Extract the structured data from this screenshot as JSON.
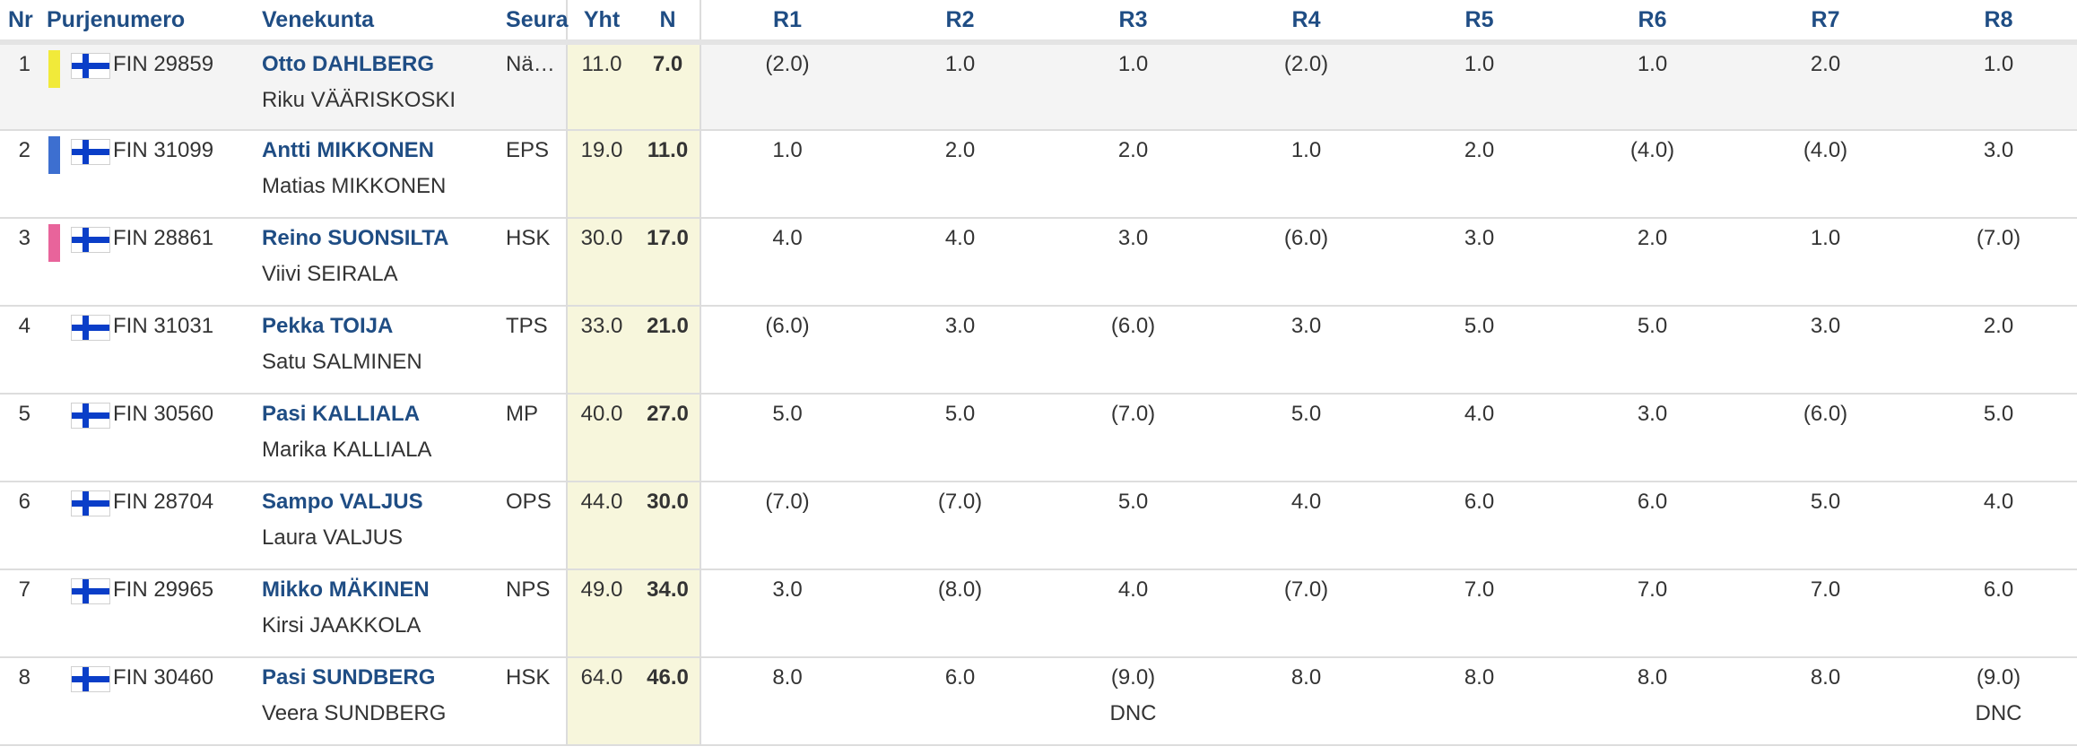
{
  "headers": {
    "nr": "Nr",
    "sail": "Purjenumero",
    "boat": "Venekunta",
    "club": "Seura",
    "total": "Yht",
    "net": "N",
    "races": [
      "R1",
      "R2",
      "R3",
      "R4",
      "R5",
      "R6",
      "R7",
      "R8"
    ]
  },
  "colors": {
    "header_text": "#1f4d84",
    "skipper_text": "#1f4d84",
    "score_bg": "#f7f6dc",
    "first_row_bg": "#f4f4f4",
    "flag_blue": "#0a3ec8"
  },
  "rows": [
    {
      "nr": "1",
      "color": "#f1ea3a",
      "flag": "finland-flag-icon",
      "sail": "FIN 29859",
      "skipper": "Otto DAHLBERG",
      "crew": "Riku VÄÄRISKOSKI",
      "club": "Nä…",
      "total": "11.0",
      "net": "7.0",
      "races": [
        {
          "score": "(2.0)",
          "code": ""
        },
        {
          "score": "1.0",
          "code": ""
        },
        {
          "score": "1.0",
          "code": ""
        },
        {
          "score": "(2.0)",
          "code": ""
        },
        {
          "score": "1.0",
          "code": ""
        },
        {
          "score": "1.0",
          "code": ""
        },
        {
          "score": "2.0",
          "code": ""
        },
        {
          "score": "1.0",
          "code": ""
        }
      ]
    },
    {
      "nr": "2",
      "color": "#3d6fd0",
      "flag": "finland-flag-icon",
      "sail": "FIN 31099",
      "skipper": "Antti MIKKONEN",
      "crew": "Matias MIKKONEN",
      "club": "EPS",
      "total": "19.0",
      "net": "11.0",
      "races": [
        {
          "score": "1.0",
          "code": ""
        },
        {
          "score": "2.0",
          "code": ""
        },
        {
          "score": "2.0",
          "code": ""
        },
        {
          "score": "1.0",
          "code": ""
        },
        {
          "score": "2.0",
          "code": ""
        },
        {
          "score": "(4.0)",
          "code": ""
        },
        {
          "score": "(4.0)",
          "code": ""
        },
        {
          "score": "3.0",
          "code": ""
        }
      ]
    },
    {
      "nr": "3",
      "color": "#e8649b",
      "flag": "finland-flag-icon",
      "sail": "FIN 28861",
      "skipper": "Reino SUONSILTA",
      "crew": "Viivi SEIRALA",
      "club": "HSK",
      "total": "30.0",
      "net": "17.0",
      "races": [
        {
          "score": "4.0",
          "code": ""
        },
        {
          "score": "4.0",
          "code": ""
        },
        {
          "score": "3.0",
          "code": ""
        },
        {
          "score": "(6.0)",
          "code": ""
        },
        {
          "score": "3.0",
          "code": ""
        },
        {
          "score": "2.0",
          "code": ""
        },
        {
          "score": "1.0",
          "code": ""
        },
        {
          "score": "(7.0)",
          "code": ""
        }
      ]
    },
    {
      "nr": "4",
      "color": "",
      "flag": "finland-flag-icon",
      "sail": "FIN 31031",
      "skipper": "Pekka TOIJA",
      "crew": "Satu SALMINEN",
      "club": "TPS",
      "total": "33.0",
      "net": "21.0",
      "races": [
        {
          "score": "(6.0)",
          "code": ""
        },
        {
          "score": "3.0",
          "code": ""
        },
        {
          "score": "(6.0)",
          "code": ""
        },
        {
          "score": "3.0",
          "code": ""
        },
        {
          "score": "5.0",
          "code": ""
        },
        {
          "score": "5.0",
          "code": ""
        },
        {
          "score": "3.0",
          "code": ""
        },
        {
          "score": "2.0",
          "code": ""
        }
      ]
    },
    {
      "nr": "5",
      "color": "",
      "flag": "finland-flag-icon",
      "sail": "FIN 30560",
      "skipper": "Pasi KALLIALA",
      "crew": "Marika KALLIALA",
      "club": "MP",
      "total": "40.0",
      "net": "27.0",
      "races": [
        {
          "score": "5.0",
          "code": ""
        },
        {
          "score": "5.0",
          "code": ""
        },
        {
          "score": "(7.0)",
          "code": ""
        },
        {
          "score": "5.0",
          "code": ""
        },
        {
          "score": "4.0",
          "code": ""
        },
        {
          "score": "3.0",
          "code": ""
        },
        {
          "score": "(6.0)",
          "code": ""
        },
        {
          "score": "5.0",
          "code": ""
        }
      ]
    },
    {
      "nr": "6",
      "color": "",
      "flag": "finland-flag-icon",
      "sail": "FIN 28704",
      "skipper": "Sampo VALJUS",
      "crew": "Laura VALJUS",
      "club": "OPS",
      "total": "44.0",
      "net": "30.0",
      "races": [
        {
          "score": "(7.0)",
          "code": ""
        },
        {
          "score": "(7.0)",
          "code": ""
        },
        {
          "score": "5.0",
          "code": ""
        },
        {
          "score": "4.0",
          "code": ""
        },
        {
          "score": "6.0",
          "code": ""
        },
        {
          "score": "6.0",
          "code": ""
        },
        {
          "score": "5.0",
          "code": ""
        },
        {
          "score": "4.0",
          "code": ""
        }
      ]
    },
    {
      "nr": "7",
      "color": "",
      "flag": "finland-flag-icon",
      "sail": "FIN 29965",
      "skipper": "Mikko MÄKINEN",
      "crew": "Kirsi JAAKKOLA",
      "club": "NPS",
      "total": "49.0",
      "net": "34.0",
      "races": [
        {
          "score": "3.0",
          "code": ""
        },
        {
          "score": "(8.0)",
          "code": ""
        },
        {
          "score": "4.0",
          "code": ""
        },
        {
          "score": "(7.0)",
          "code": ""
        },
        {
          "score": "7.0",
          "code": ""
        },
        {
          "score": "7.0",
          "code": ""
        },
        {
          "score": "7.0",
          "code": ""
        },
        {
          "score": "6.0",
          "code": ""
        }
      ]
    },
    {
      "nr": "8",
      "color": "",
      "flag": "finland-flag-icon",
      "sail": "FIN 30460",
      "skipper": "Pasi SUNDBERG",
      "crew": "Veera SUNDBERG",
      "club": "HSK",
      "total": "64.0",
      "net": "46.0",
      "races": [
        {
          "score": "8.0",
          "code": ""
        },
        {
          "score": "6.0",
          "code": ""
        },
        {
          "score": "(9.0)",
          "code": "DNC"
        },
        {
          "score": "8.0",
          "code": ""
        },
        {
          "score": "8.0",
          "code": ""
        },
        {
          "score": "8.0",
          "code": ""
        },
        {
          "score": "8.0",
          "code": ""
        },
        {
          "score": "(9.0)",
          "code": "DNC"
        }
      ]
    }
  ]
}
